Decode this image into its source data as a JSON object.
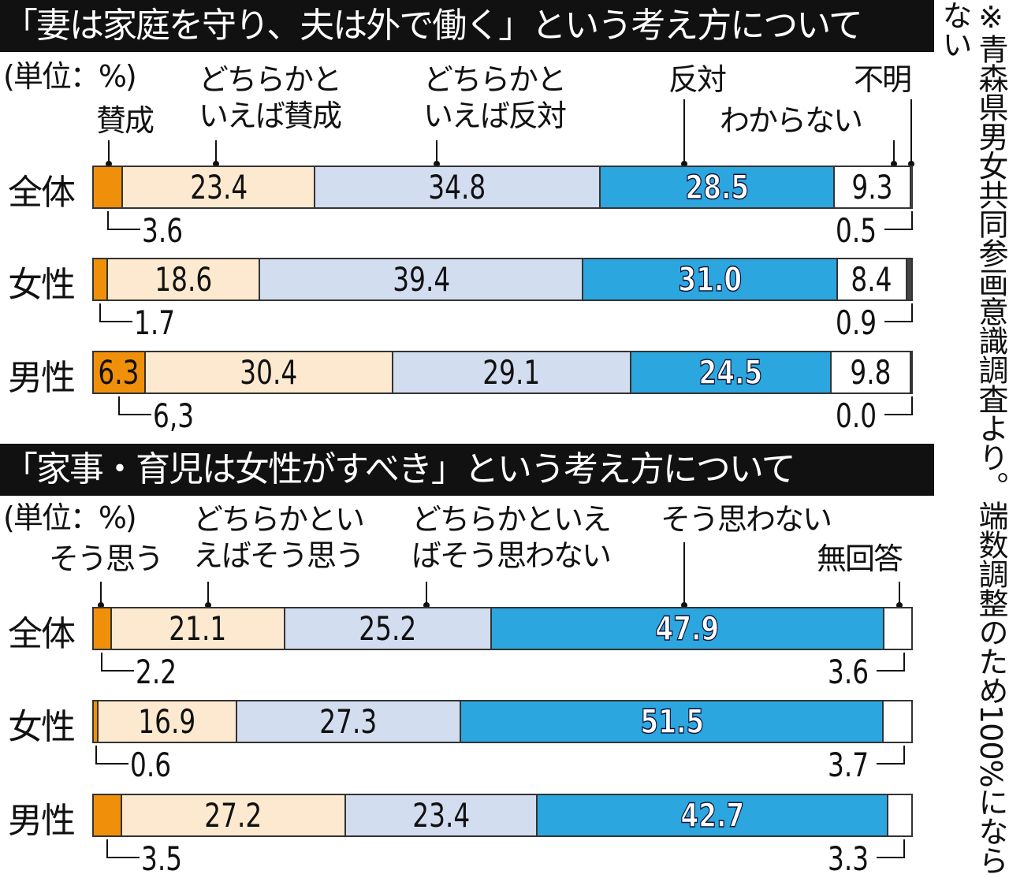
{
  "note": "※青森県男女共同参画意識調査より。端数調整のため100%にならない",
  "chart_data": [
    {
      "type": "bar",
      "orientation": "horizontal-stacked",
      "title": "「妻は家庭を守り、夫は外で働く」という考え方について",
      "unit": "(単位：%)",
      "categories": [
        "全体",
        "女性",
        "男性"
      ],
      "series": [
        {
          "name": "賛成",
          "color": "#f0900a",
          "values": [
            3.6,
            1.7,
            6.3
          ],
          "labels": [
            "3.6",
            "1.7",
            "6,3"
          ]
        },
        {
          "name": "どちらかと\nいえば賛成",
          "color": "#fde9cf",
          "values": [
            23.4,
            18.6,
            30.4
          ]
        },
        {
          "name": "どちらかと\nいえば反対",
          "color": "#d3ddf0",
          "values": [
            34.8,
            39.4,
            29.1
          ]
        },
        {
          "name": "反対",
          "color": "#2ba6df",
          "values": [
            28.5,
            31.0,
            24.5
          ]
        },
        {
          "name": "わからない",
          "color": "#ffffff",
          "values": [
            9.3,
            8.4,
            9.8
          ]
        },
        {
          "name": "不明",
          "color": "#444444",
          "values": [
            0.5,
            0.9,
            0.0
          ]
        }
      ]
    },
    {
      "type": "bar",
      "orientation": "horizontal-stacked",
      "title": "「家事・育児は女性がすべき」という考え方について",
      "unit": "(単位：%)",
      "categories": [
        "全体",
        "女性",
        "男性"
      ],
      "series": [
        {
          "name": "そう思う",
          "color": "#f0900a",
          "values": [
            2.2,
            0.6,
            3.5
          ]
        },
        {
          "name": "どちらかとい\nえばそう思う",
          "color": "#fde9cf",
          "values": [
            21.1,
            16.9,
            27.2
          ]
        },
        {
          "name": "どちらかといえ\nばそう思わない",
          "color": "#d3ddf0",
          "values": [
            25.2,
            27.3,
            23.4
          ]
        },
        {
          "name": "そう思わない",
          "color": "#2ba6df",
          "values": [
            47.9,
            51.5,
            42.7
          ]
        },
        {
          "name": "無回答",
          "color": "#ffffff",
          "values": [
            3.6,
            3.7,
            3.3
          ]
        }
      ]
    }
  ]
}
